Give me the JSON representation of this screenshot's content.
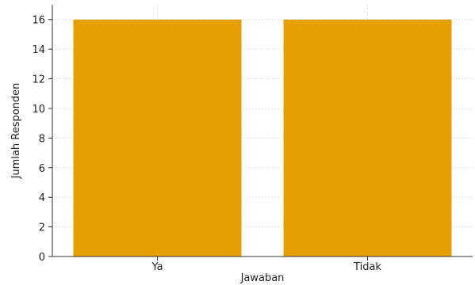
{
  "chart_data": {
    "type": "bar",
    "categories": [
      "Ya",
      "Tidak"
    ],
    "values": [
      16,
      16
    ],
    "xlabel": "Jawaban",
    "ylabel": "Jumlah Responden",
    "ylim": [
      0,
      17
    ],
    "yticks": [
      0,
      2,
      4,
      6,
      8,
      10,
      12,
      14,
      16
    ],
    "grid": true,
    "bar_color": "#e69f00",
    "grid_color": "#e3e3e3",
    "axis_color": "#333333"
  }
}
